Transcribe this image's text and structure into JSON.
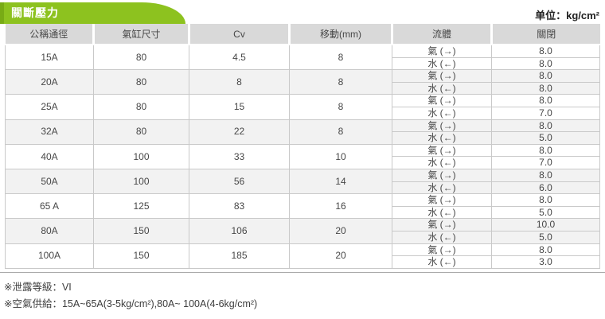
{
  "header": {
    "tab_title": "關斷壓力",
    "unit_label": "单位：kg/cm²"
  },
  "table": {
    "columns": [
      "公稱通徑",
      "氣缸尺寸",
      "Cv",
      "移動(mm)",
      "流體",
      "關閉"
    ],
    "fluid_gas_label": "氣 (→)",
    "fluid_water_label": "水 (←)",
    "rows": [
      {
        "size": "15A",
        "cylinder": "80",
        "cv": "4.5",
        "travel": "8",
        "gas_close": "8.0",
        "water_close": "8.0"
      },
      {
        "size": "20A",
        "cylinder": "80",
        "cv": "8",
        "travel": "8",
        "gas_close": "8.0",
        "water_close": "8.0"
      },
      {
        "size": "25A",
        "cylinder": "80",
        "cv": "15",
        "travel": "8",
        "gas_close": "8.0",
        "water_close": "7.0"
      },
      {
        "size": "32A",
        "cylinder": "80",
        "cv": "22",
        "travel": "8",
        "gas_close": "8.0",
        "water_close": "5.0"
      },
      {
        "size": "40A",
        "cylinder": "100",
        "cv": "33",
        "travel": "10",
        "gas_close": "8.0",
        "water_close": "7.0"
      },
      {
        "size": "50A",
        "cylinder": "100",
        "cv": "56",
        "travel": "14",
        "gas_close": "8.0",
        "water_close": "6.0"
      },
      {
        "size": "65 A",
        "cylinder": "125",
        "cv": "83",
        "travel": "16",
        "gas_close": "8.0",
        "water_close": "5.0"
      },
      {
        "size": "80A",
        "cylinder": "150",
        "cv": "106",
        "travel": "20",
        "gas_close": "10.0",
        "water_close": "5.0"
      },
      {
        "size": "100A",
        "cylinder": "150",
        "cv": "185",
        "travel": "20",
        "gas_close": "8.0",
        "water_close": "3.0"
      }
    ]
  },
  "footnotes": [
    "※泄露等級：VI",
    "※空氣供給：15A~65A(3-5kg/cm²),80A~ 100A(4-6kg/cm²)"
  ],
  "colors": {
    "accent_green": "#8dc21f",
    "accent_green_dark": "#78ab15",
    "header_bg": "#d9d9d9",
    "alt_row_bg": "#f2f2f2",
    "border": "#c9c9c9",
    "text": "#4a4a4a"
  }
}
